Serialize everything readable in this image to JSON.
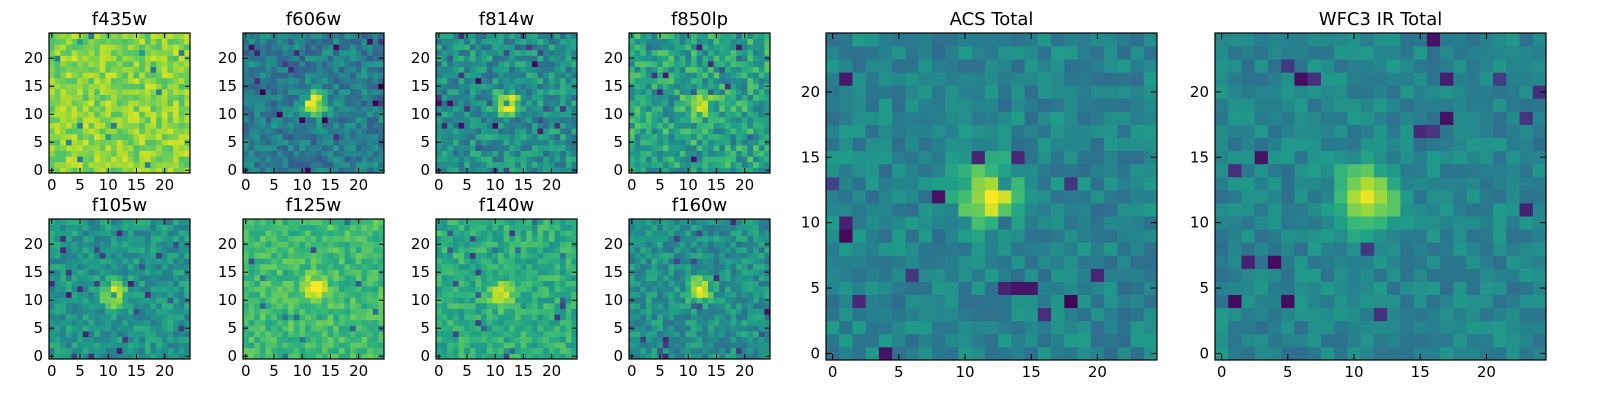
{
  "figure": {
    "title": "",
    "background": "#ffffff"
  },
  "colormap": {
    "name": "viridis",
    "stops": [
      "#440154",
      "#482878",
      "#3e4989",
      "#31688e",
      "#26828e",
      "#1f9e89",
      "#35b779",
      "#6ece58",
      "#b5de2b",
      "#fde725"
    ]
  },
  "chart_data": [
    {
      "type": "heatmap",
      "title": "f435w",
      "grid_size": 25,
      "peak": [
        12,
        12
      ],
      "source_amplitude": 0.0,
      "background_level": 0.82,
      "noise_level": 0.12,
      "seed": 3,
      "xticks": [
        0,
        5,
        10,
        15,
        20
      ],
      "yticks": [
        0,
        5,
        10,
        15,
        20
      ],
      "xlim": [
        -0.5,
        24.5
      ],
      "ylim": [
        -0.5,
        24.5
      ]
    },
    {
      "type": "heatmap",
      "title": "f606w",
      "grid_size": 25,
      "peak": [
        12,
        12
      ],
      "source_amplitude": 0.55,
      "background_level": 0.42,
      "noise_level": 0.14,
      "seed": 5,
      "xticks": [
        0,
        5,
        10,
        15,
        20
      ],
      "yticks": [
        0,
        5,
        10,
        15,
        20
      ],
      "xlim": [
        -0.5,
        24.5
      ],
      "ylim": [
        -0.5,
        24.5
      ]
    },
    {
      "type": "heatmap",
      "title": "f814w",
      "grid_size": 25,
      "peak": [
        12,
        12
      ],
      "source_amplitude": 0.5,
      "background_level": 0.5,
      "noise_level": 0.16,
      "seed": 7,
      "xticks": [
        0,
        5,
        10,
        15,
        20
      ],
      "yticks": [
        0,
        5,
        10,
        15,
        20
      ],
      "xlim": [
        -0.5,
        24.5
      ],
      "ylim": [
        -0.5,
        24.5
      ]
    },
    {
      "type": "heatmap",
      "title": "f850lp",
      "grid_size": 25,
      "peak": [
        12,
        12
      ],
      "source_amplitude": 0.4,
      "background_level": 0.58,
      "noise_level": 0.17,
      "seed": 11,
      "xticks": [
        0,
        5,
        10,
        15,
        20
      ],
      "yticks": [
        0,
        5,
        10,
        15,
        20
      ],
      "xlim": [
        -0.5,
        24.5
      ],
      "ylim": [
        -0.5,
        24.5
      ]
    },
    {
      "type": "heatmap",
      "title": "f105w",
      "grid_size": 25,
      "peak": [
        11,
        11
      ],
      "source_amplitude": 0.45,
      "background_level": 0.52,
      "noise_level": 0.12,
      "seed": 13,
      "xticks": [
        0,
        5,
        10,
        15,
        20
      ],
      "yticks": [
        0,
        5,
        10,
        15,
        20
      ],
      "xlim": [
        -0.5,
        24.5
      ],
      "ylim": [
        -0.5,
        24.5
      ]
    },
    {
      "type": "heatmap",
      "title": "f125w",
      "grid_size": 25,
      "peak": [
        12,
        12
      ],
      "source_amplitude": 0.35,
      "background_level": 0.68,
      "noise_level": 0.1,
      "seed": 17,
      "xticks": [
        0,
        5,
        10,
        15,
        20
      ],
      "yticks": [
        0,
        5,
        10,
        15,
        20
      ],
      "xlim": [
        -0.5,
        24.5
      ],
      "ylim": [
        -0.5,
        24.5
      ]
    },
    {
      "type": "heatmap",
      "title": "f140w",
      "grid_size": 25,
      "peak": [
        11,
        11
      ],
      "source_amplitude": 0.35,
      "background_level": 0.62,
      "noise_level": 0.11,
      "seed": 19,
      "xticks": [
        0,
        5,
        10,
        15,
        20
      ],
      "yticks": [
        0,
        5,
        10,
        15,
        20
      ],
      "xlim": [
        -0.5,
        24.5
      ],
      "ylim": [
        -0.5,
        24.5
      ]
    },
    {
      "type": "heatmap",
      "title": "f160w",
      "grid_size": 25,
      "peak": [
        12,
        12
      ],
      "source_amplitude": 0.45,
      "background_level": 0.5,
      "noise_level": 0.13,
      "seed": 23,
      "xticks": [
        0,
        5,
        10,
        15,
        20
      ],
      "yticks": [
        0,
        5,
        10,
        15,
        20
      ],
      "xlim": [
        -0.5,
        24.5
      ],
      "ylim": [
        -0.5,
        24.5
      ]
    },
    {
      "type": "heatmap",
      "title": "ACS Total",
      "grid_size": 25,
      "peak": [
        12,
        12
      ],
      "source_amplitude": 0.55,
      "background_level": 0.45,
      "noise_level": 0.1,
      "seed": 29,
      "xticks": [
        0,
        5,
        10,
        15,
        20
      ],
      "yticks": [
        0,
        5,
        10,
        15,
        20
      ],
      "xlim": [
        -0.5,
        24.5
      ],
      "ylim": [
        -0.5,
        24.5
      ]
    },
    {
      "type": "heatmap",
      "title": "WFC3 IR Total",
      "grid_size": 25,
      "peak": [
        11,
        12
      ],
      "source_amplitude": 0.55,
      "background_level": 0.45,
      "noise_level": 0.09,
      "seed": 31,
      "xticks": [
        0,
        5,
        10,
        15,
        20
      ],
      "yticks": [
        0,
        5,
        10,
        15,
        20
      ],
      "xlim": [
        -0.5,
        24.5
      ],
      "ylim": [
        -0.5,
        24.5
      ]
    }
  ]
}
